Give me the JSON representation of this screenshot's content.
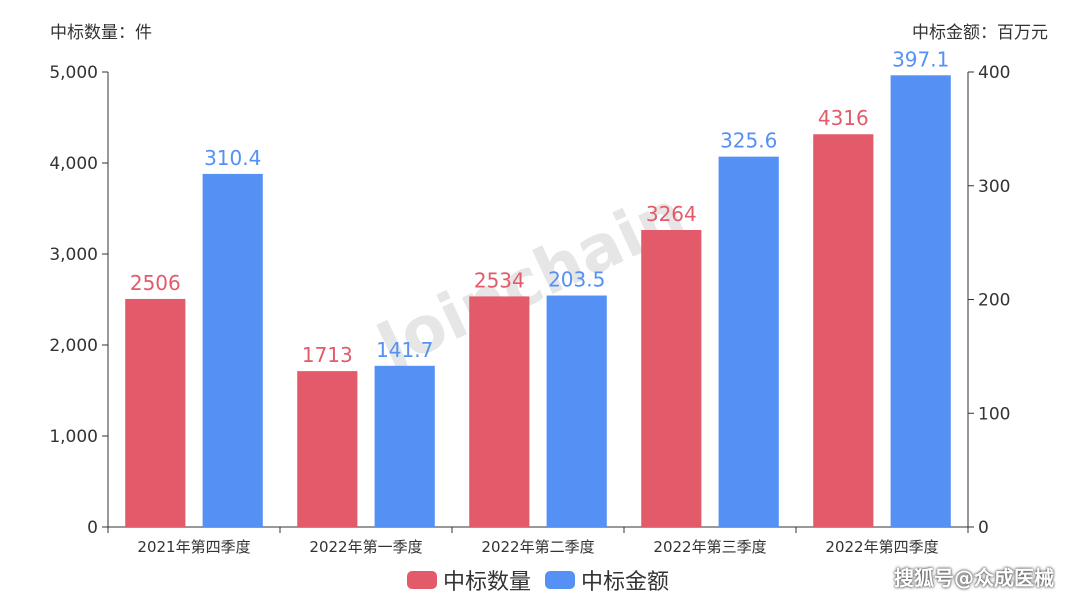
{
  "chart_data": {
    "type": "bar",
    "categories": [
      "2021年第四季度",
      "2022年第一季度",
      "2022年第二季度",
      "2022年第三季度",
      "2022年第四季度"
    ],
    "series": [
      {
        "name": "中标数量",
        "axis": "left",
        "color": "#e35b6b",
        "values": [
          2506,
          1713,
          2534,
          3264,
          4316
        ]
      },
      {
        "name": "中标金额",
        "axis": "right",
        "color": "#5591f5",
        "values": [
          310.4,
          141.7,
          203.5,
          325.6,
          397.1
        ]
      }
    ],
    "yleft": {
      "title": "中标数量：件",
      "ylim": [
        0,
        5000
      ],
      "ticks": [
        "0",
        "1,000",
        "2,000",
        "3,000",
        "4,000",
        "5,000"
      ]
    },
    "yright": {
      "title": "中标金额：百万元",
      "ylim": [
        0,
        400
      ],
      "ticks": [
        "0",
        "100",
        "200",
        "300",
        "400"
      ]
    },
    "grid": false,
    "legend_position": "bottom"
  },
  "watermark": "Joinchain",
  "credit": "搜狐号@众成医械"
}
